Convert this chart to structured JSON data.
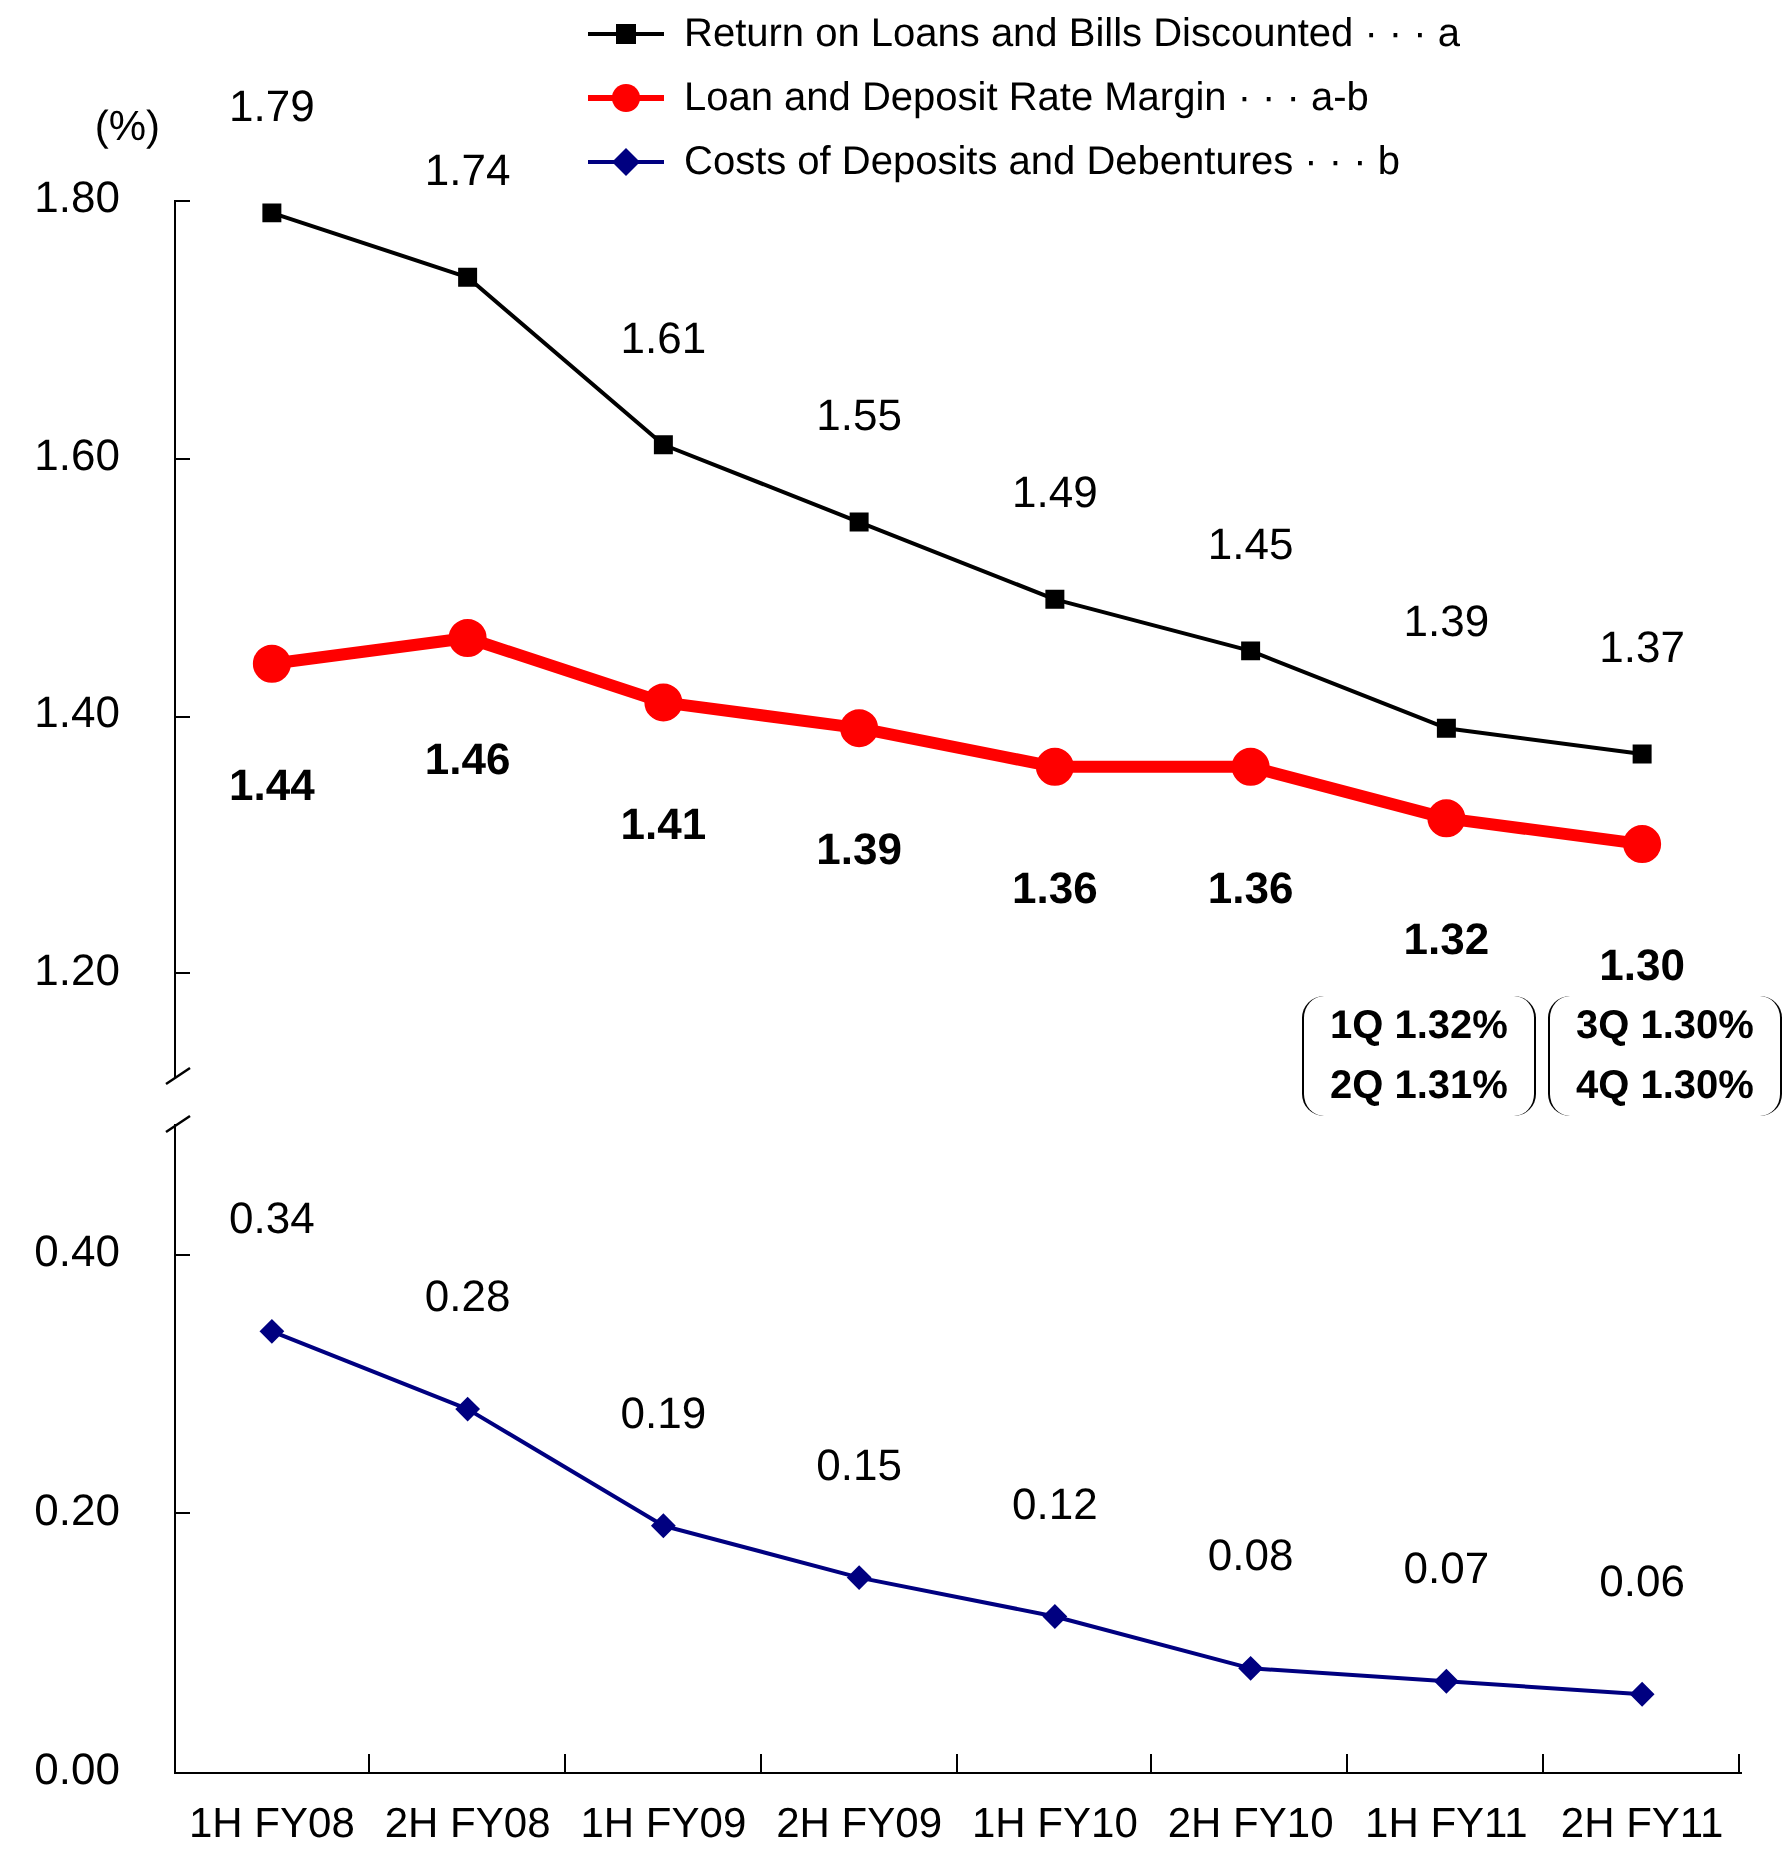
{
  "chart_data": [
    {
      "type": "line",
      "ylabel": "(%)",
      "categories": [
        "1H FY08",
        "2H FY08",
        "1H FY09",
        "2H FY09",
        "1H FY10",
        "2H FY10",
        "1H FY11",
        "2H FY11"
      ],
      "series": [
        {
          "name": "Return on Loans and Bills Discounted · · · a",
          "color": "#000000",
          "marker": "square",
          "values": [
            1.79,
            1.74,
            1.61,
            1.55,
            1.49,
            1.45,
            1.39,
            1.37
          ],
          "value_labels": [
            "1.79",
            "1.74",
            "1.61",
            "1.55",
            "1.49",
            "1.45",
            "1.39",
            "1.37"
          ]
        },
        {
          "name": "Loan and Deposit Rate Margin · · · a-b",
          "color": "#ff0000",
          "marker": "circle",
          "values": [
            1.44,
            1.46,
            1.41,
            1.39,
            1.36,
            1.36,
            1.32,
            1.3
          ],
          "value_labels": [
            "1.44",
            "1.46",
            "1.41",
            "1.39",
            "1.36",
            "1.36",
            "1.32",
            "1.30"
          ]
        }
      ],
      "ylim": [
        1.12,
        1.8
      ],
      "yticks": [
        {
          "value": 1.2,
          "label": "1.20"
        },
        {
          "value": 1.4,
          "label": "1.40"
        },
        {
          "value": 1.6,
          "label": "1.60"
        },
        {
          "value": 1.8,
          "label": "1.80"
        }
      ],
      "tick_labels": "y",
      "grid": false,
      "legend": "top",
      "annotations": [
        "1Q 1.32%\n2Q 1.31%",
        "3Q 1.30%\n4Q 1.30%"
      ]
    },
    {
      "type": "line",
      "categories": [
        "1H FY08",
        "2H FY08",
        "1H FY09",
        "2H FY09",
        "1H FY10",
        "2H FY10",
        "1H FY11",
        "2H FY11"
      ],
      "series": [
        {
          "name": "Costs of Deposits and Debentures · · · b",
          "color": "#000080",
          "marker": "diamond",
          "values": [
            0.34,
            0.28,
            0.19,
            0.15,
            0.12,
            0.08,
            0.07,
            0.06
          ],
          "value_labels": [
            "0.34",
            "0.28",
            "0.19",
            "0.15",
            "0.12",
            "0.08",
            "0.07",
            "0.06"
          ]
        }
      ],
      "ylim": [
        0,
        0.5
      ],
      "yticks": [
        {
          "value": 0,
          "label": "0.00"
        },
        {
          "value": 0.2,
          "label": "0.20"
        },
        {
          "value": 0.4,
          "label": "0.40"
        }
      ],
      "grid": false,
      "legend": "top"
    }
  ]
}
